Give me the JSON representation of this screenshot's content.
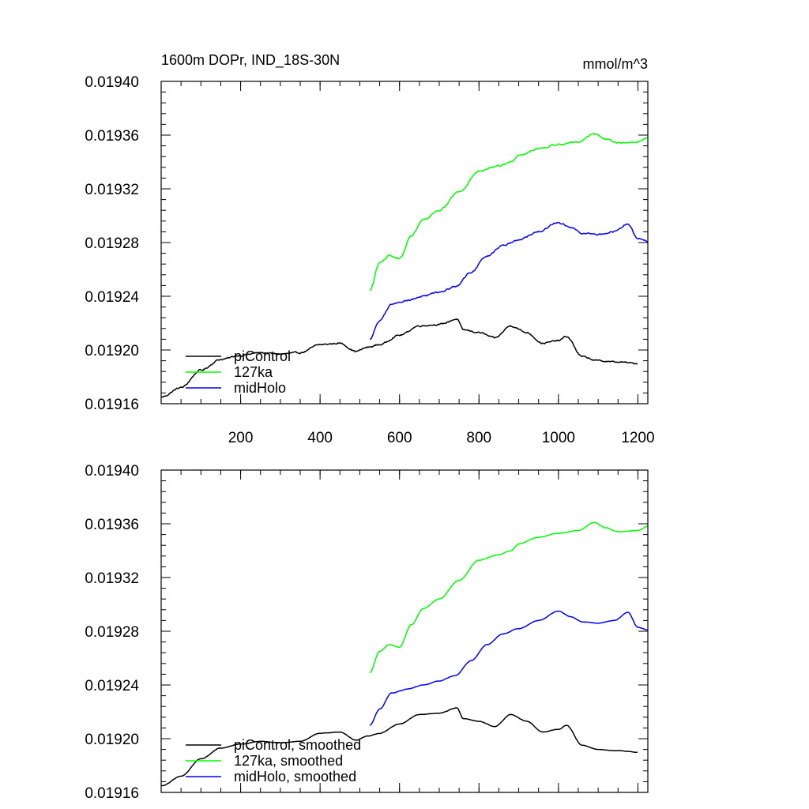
{
  "chart_data": [
    {
      "type": "line",
      "title_left": "1600m DOPr, IND_18S-30N",
      "title_right": "mmol/m^3",
      "xlim": [
        0,
        1225
      ],
      "ylim": [
        0.01916,
        0.0194
      ],
      "x_ticks": [
        200,
        400,
        600,
        800,
        1000,
        1200
      ],
      "x_tick_labels": [
        "200",
        "400",
        "600",
        "800",
        "1000",
        "1200"
      ],
      "y_ticks": [
        0.01916,
        0.0192,
        0.01924,
        0.01928,
        0.01932,
        0.01936,
        0.0194
      ],
      "y_tick_labels": [
        "0.01916",
        "0.01920",
        "0.01924",
        "0.01928",
        "0.01932",
        "0.01936",
        "0.01940"
      ],
      "legend_position": "bottom-left",
      "noise": 4.5e-07,
      "series": [
        {
          "name": "piControl",
          "color": "#000000",
          "x_start": 1,
          "x_end": 1200,
          "knots": [
            [
              1,
              0.019165
            ],
            [
              50,
              0.019172
            ],
            [
              100,
              0.019185
            ],
            [
              150,
              0.019193
            ],
            [
              200,
              0.019196
            ],
            [
              250,
              0.019198
            ],
            [
              300,
              0.019197
            ],
            [
              350,
              0.019198
            ],
            [
              400,
              0.019204
            ],
            [
              450,
              0.019205
            ],
            [
              490,
              0.019199
            ],
            [
              520,
              0.019202
            ],
            [
              550,
              0.019204
            ],
            [
              600,
              0.019211
            ],
            [
              650,
              0.019218
            ],
            [
              700,
              0.019219
            ],
            [
              745,
              0.019223
            ],
            [
              760,
              0.019215
            ],
            [
              800,
              0.019213
            ],
            [
              840,
              0.019209
            ],
            [
              880,
              0.019218
            ],
            [
              920,
              0.019213
            ],
            [
              960,
              0.019205
            ],
            [
              1000,
              0.019207
            ],
            [
              1020,
              0.01921
            ],
            [
              1060,
              0.019195
            ],
            [
              1100,
              0.019192
            ],
            [
              1150,
              0.019191
            ],
            [
              1200,
              0.01919
            ]
          ]
        },
        {
          "name": "127ka",
          "color": "#00ff00",
          "x_start": 525,
          "x_end": 1225,
          "knots": [
            [
              525,
              0.019244
            ],
            [
              550,
              0.019265
            ],
            [
              575,
              0.01927
            ],
            [
              600,
              0.019268
            ],
            [
              630,
              0.019285
            ],
            [
              660,
              0.019297
            ],
            [
              700,
              0.019304
            ],
            [
              750,
              0.019318
            ],
            [
              800,
              0.019333
            ],
            [
              850,
              0.019337
            ],
            [
              880,
              0.01934
            ],
            [
              900,
              0.019345
            ],
            [
              950,
              0.01935
            ],
            [
              1000,
              0.019353
            ],
            [
              1050,
              0.019355
            ],
            [
              1090,
              0.019361
            ],
            [
              1120,
              0.019357
            ],
            [
              1150,
              0.019354
            ],
            [
              1200,
              0.019355
            ],
            [
              1225,
              0.019358
            ]
          ]
        },
        {
          "name": "midHolo",
          "color": "#0000ff",
          "x_start": 525,
          "x_end": 1225,
          "knots": [
            [
              525,
              0.019208
            ],
            [
              550,
              0.019222
            ],
            [
              580,
              0.019234
            ],
            [
              620,
              0.019237
            ],
            [
              660,
              0.01924
            ],
            [
              700,
              0.019243
            ],
            [
              740,
              0.019247
            ],
            [
              780,
              0.019258
            ],
            [
              820,
              0.01927
            ],
            [
              860,
              0.019278
            ],
            [
              900,
              0.019282
            ],
            [
              950,
              0.019288
            ],
            [
              1000,
              0.019295
            ],
            [
              1030,
              0.019291
            ],
            [
              1060,
              0.019287
            ],
            [
              1100,
              0.019286
            ],
            [
              1140,
              0.019288
            ],
            [
              1175,
              0.019294
            ],
            [
              1200,
              0.019283
            ],
            [
              1225,
              0.019281
            ]
          ]
        }
      ]
    },
    {
      "type": "line",
      "title_left": "",
      "title_right": "",
      "xlim": [
        0,
        1225
      ],
      "ylim": [
        0.01916,
        0.0194
      ],
      "x_ticks": [
        200,
        400,
        600,
        800,
        1000,
        1200
      ],
      "x_tick_labels": [],
      "y_ticks": [
        0.01916,
        0.0192,
        0.01924,
        0.01928,
        0.01932,
        0.01936,
        0.0194
      ],
      "y_tick_labels": [
        "0.01916",
        "0.01920",
        "0.01924",
        "0.01928",
        "0.01932",
        "0.01936",
        "0.01940"
      ],
      "legend_position": "bottom-left",
      "noise": 1.2e-07,
      "series": [
        {
          "name": "piControl, smoothed",
          "color": "#000000",
          "x_start": 1,
          "x_end": 1200,
          "knots": [
            [
              1,
              0.019165
            ],
            [
              50,
              0.019172
            ],
            [
              100,
              0.019185
            ],
            [
              150,
              0.019193
            ],
            [
              200,
              0.019196
            ],
            [
              250,
              0.019198
            ],
            [
              300,
              0.019197
            ],
            [
              350,
              0.019198
            ],
            [
              400,
              0.019204
            ],
            [
              450,
              0.019205
            ],
            [
              490,
              0.019199
            ],
            [
              520,
              0.019202
            ],
            [
              550,
              0.019204
            ],
            [
              600,
              0.019211
            ],
            [
              650,
              0.019218
            ],
            [
              700,
              0.019219
            ],
            [
              745,
              0.019223
            ],
            [
              760,
              0.019215
            ],
            [
              800,
              0.019213
            ],
            [
              840,
              0.019209
            ],
            [
              880,
              0.019218
            ],
            [
              920,
              0.019213
            ],
            [
              960,
              0.019205
            ],
            [
              1000,
              0.019207
            ],
            [
              1020,
              0.01921
            ],
            [
              1060,
              0.019195
            ],
            [
              1100,
              0.019192
            ],
            [
              1150,
              0.019191
            ],
            [
              1200,
              0.01919
            ]
          ]
        },
        {
          "name": "127ka, smoothed",
          "color": "#00ff00",
          "x_start": 525,
          "x_end": 1225,
          "knots": [
            [
              525,
              0.019249
            ],
            [
              550,
              0.019265
            ],
            [
              575,
              0.01927
            ],
            [
              600,
              0.019268
            ],
            [
              630,
              0.019285
            ],
            [
              660,
              0.019297
            ],
            [
              700,
              0.019304
            ],
            [
              750,
              0.019318
            ],
            [
              800,
              0.019333
            ],
            [
              850,
              0.019337
            ],
            [
              880,
              0.01934
            ],
            [
              900,
              0.019345
            ],
            [
              950,
              0.01935
            ],
            [
              1000,
              0.019353
            ],
            [
              1050,
              0.019355
            ],
            [
              1090,
              0.019361
            ],
            [
              1120,
              0.019357
            ],
            [
              1150,
              0.019354
            ],
            [
              1200,
              0.019355
            ],
            [
              1225,
              0.019358
            ]
          ]
        },
        {
          "name": "midHolo, smoothed",
          "color": "#0000ff",
          "x_start": 525,
          "x_end": 1225,
          "knots": [
            [
              525,
              0.01921
            ],
            [
              550,
              0.019222
            ],
            [
              580,
              0.019234
            ],
            [
              620,
              0.019237
            ],
            [
              660,
              0.01924
            ],
            [
              700,
              0.019243
            ],
            [
              740,
              0.019247
            ],
            [
              780,
              0.019258
            ],
            [
              820,
              0.01927
            ],
            [
              860,
              0.019278
            ],
            [
              900,
              0.019282
            ],
            [
              950,
              0.019288
            ],
            [
              1000,
              0.019295
            ],
            [
              1030,
              0.019291
            ],
            [
              1060,
              0.019287
            ],
            [
              1100,
              0.019286
            ],
            [
              1140,
              0.019288
            ],
            [
              1175,
              0.019294
            ],
            [
              1200,
              0.019283
            ],
            [
              1225,
              0.019281
            ]
          ]
        }
      ]
    }
  ]
}
